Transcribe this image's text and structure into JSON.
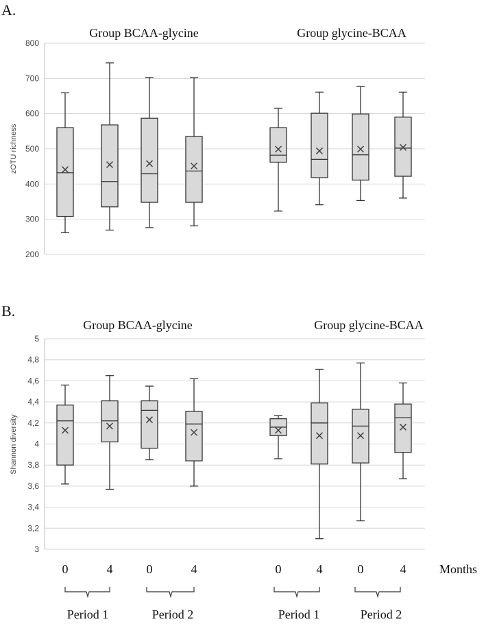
{
  "chart_data": [
    {
      "type": "box",
      "panel_label": "A.",
      "ylabel": "zOTU richness",
      "ylim": [
        200,
        800
      ],
      "yticks": [
        "200",
        "300",
        "400",
        "500",
        "600",
        "700",
        "800"
      ],
      "grid": true,
      "groups": [
        {
          "title": "Group BCAA-glycine",
          "boxes": [
            {
              "min": 262,
              "q1": 308,
              "median": 432,
              "q3": 560,
              "max": 659,
              "mean": 441
            },
            {
              "min": 269,
              "q1": 335,
              "median": 407,
              "q3": 568,
              "max": 744,
              "mean": 455
            },
            {
              "min": 276,
              "q1": 348,
              "median": 429,
              "q3": 587,
              "max": 703,
              "mean": 458
            },
            {
              "min": 281,
              "q1": 348,
              "median": 437,
              "q3": 535,
              "max": 702,
              "mean": 451
            }
          ]
        },
        {
          "title": "Group glycine-BCAA",
          "boxes": [
            {
              "min": 323,
              "q1": 462,
              "median": 482,
              "q3": 560,
              "max": 615,
              "mean": 499
            },
            {
              "min": 341,
              "q1": 418,
              "median": 470,
              "q3": 601,
              "max": 661,
              "mean": 494
            },
            {
              "min": 353,
              "q1": 411,
              "median": 483,
              "q3": 599,
              "max": 677,
              "mean": 499
            },
            {
              "min": 360,
              "q1": 422,
              "median": 502,
              "q3": 590,
              "max": 661,
              "mean": 504
            }
          ]
        }
      ]
    },
    {
      "type": "box",
      "panel_label": "B.",
      "ylabel": "Shannon diversity",
      "ylim": [
        3,
        5
      ],
      "yticks": [
        "3",
        "3,2",
        "3,4",
        "3,6",
        "3,8",
        "4",
        "4,2",
        "4,4",
        "4,6",
        "4,8",
        "5"
      ],
      "grid": true,
      "groups": [
        {
          "title": "Group BCAA-glycine",
          "boxes": [
            {
              "min": 3.62,
              "q1": 3.8,
              "median": 4.22,
              "q3": 4.37,
              "max": 4.56,
              "mean": 4.13
            },
            {
              "min": 3.57,
              "q1": 4.02,
              "median": 4.22,
              "q3": 4.41,
              "max": 4.65,
              "mean": 4.17
            },
            {
              "min": 3.85,
              "q1": 3.96,
              "median": 4.32,
              "q3": 4.41,
              "max": 4.55,
              "mean": 4.23
            },
            {
              "min": 3.6,
              "q1": 3.84,
              "median": 4.19,
              "q3": 4.31,
              "max": 4.62,
              "mean": 4.11
            }
          ]
        },
        {
          "title": "Group glycine-BCAA",
          "boxes": [
            {
              "min": 3.86,
              "q1": 4.08,
              "median": 4.16,
              "q3": 4.24,
              "max": 4.27,
              "mean": 4.13
            },
            {
              "min": 3.1,
              "q1": 3.81,
              "median": 4.2,
              "q3": 4.39,
              "max": 4.71,
              "mean": 4.08
            },
            {
              "min": 3.27,
              "q1": 3.82,
              "median": 4.17,
              "q3": 4.33,
              "max": 4.77,
              "mean": 4.08
            },
            {
              "min": 3.67,
              "q1": 3.92,
              "median": 4.25,
              "q3": 4.38,
              "max": 4.58,
              "mean": 4.16
            }
          ]
        }
      ]
    }
  ],
  "x_categories": [
    "0",
    "4",
    "0",
    "4",
    "0",
    "4",
    "0",
    "4"
  ],
  "x_unit_label": "Months",
  "period_labels": [
    "Period 1",
    "Period 2",
    "Period 1",
    "Period 2"
  ]
}
